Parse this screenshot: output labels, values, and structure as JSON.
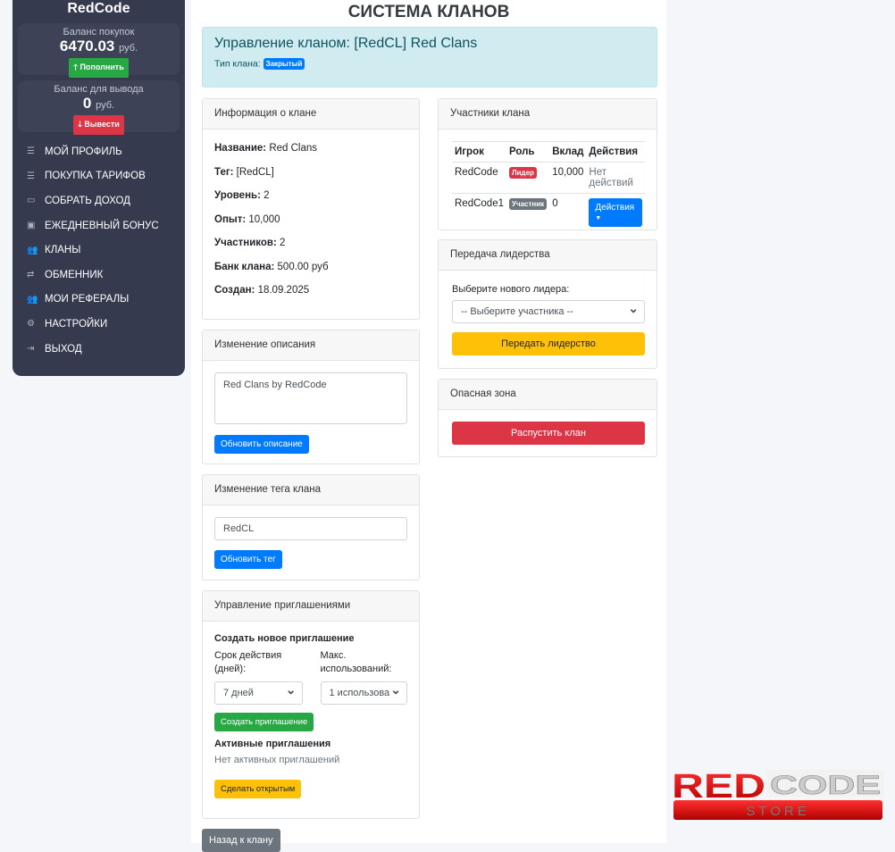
{
  "sidebar": {
    "brand": "RedCode",
    "purchase_balance": {
      "label": "Баланс покупок",
      "amount": "6470.03",
      "currency": "руб.",
      "button": "Пополнить"
    },
    "withdraw_balance": {
      "label": "Баланс для вывода",
      "amount": "0",
      "currency": "руб.",
      "button": "Вывести"
    },
    "items": [
      {
        "icon": "bars-icon",
        "label": "МОЙ ПРОФИЛЬ"
      },
      {
        "icon": "bars-icon",
        "label": "ПОКУПКА ТАРИФОВ"
      },
      {
        "icon": "money-icon",
        "label": "СОБРАТЬ ДОХОД"
      },
      {
        "icon": "gift-icon",
        "label": "ЕЖЕДНЕВНЫЙ БОНУС"
      },
      {
        "icon": "users-icon",
        "label": " КЛАНЫ"
      },
      {
        "icon": "exchange-icon",
        "label": "ОБМЕННИК"
      },
      {
        "icon": "users-icon",
        "label": "МОИ РЕФЕРАЛЫ"
      },
      {
        "icon": "gear-icon",
        "label": "НАСТРОЙКИ"
      },
      {
        "icon": "logout-icon",
        "label": "ВЫХОД"
      }
    ]
  },
  "page_title": "СИСТЕМА КЛАНОВ",
  "alert": {
    "heading": "Управление кланом: [RedCL] Red Clans",
    "type_label": "Тип клана:",
    "type_badge": "Закрытый"
  },
  "info": {
    "header": "Информация о клане",
    "rows": [
      {
        "k": "Название:",
        "v": " Red Clans"
      },
      {
        "k": "Тег:",
        "v": " [RedCL]"
      },
      {
        "k": "Уровень:",
        "v": " 2"
      },
      {
        "k": "Опыт:",
        "v": " 10,000"
      },
      {
        "k": "Участников:",
        "v": " 2"
      },
      {
        "k": "Банк клана:",
        "v": " 500.00 руб"
      },
      {
        "k": "Создан:",
        "v": " 18.09.2025"
      }
    ]
  },
  "description": {
    "header": "Изменение описания",
    "value": "Red Clans by RedCode",
    "button": "Обновить описание"
  },
  "tag": {
    "header": "Изменение тега клана",
    "value": "RedCL",
    "button": "Обновить тег"
  },
  "invites": {
    "header": "Управление приглашениями",
    "create_title": "Создать новое приглашение",
    "duration_label": "Срок действия (дней):",
    "duration_value": "7 дней",
    "max_label": "Макс. использований:",
    "max_value": "1 использова",
    "create_button": "Создать приглашение",
    "active_title": "Активные приглашения",
    "none": "Нет активных приглашений",
    "open_button": "Сделать открытым"
  },
  "back_button": "Назад к клану",
  "members": {
    "header": "Участники клана",
    "columns": [
      "Игрок",
      "Роль",
      "Вклад",
      "Действия"
    ],
    "rows": [
      {
        "player": "RedCode",
        "role": "Лидер",
        "contribution": "10,000",
        "action": "Нет действий"
      },
      {
        "player": "RedCode1",
        "role": "Участник",
        "contribution": "0",
        "action": "Действия"
      }
    ]
  },
  "leadership": {
    "header": "Передача лидерства",
    "label": "Выберите нового лидера:",
    "select": "-- Выберите участника --",
    "button": "Передать лидерство"
  },
  "danger": {
    "header": "Опасная зона",
    "button": "Распустить клан"
  },
  "logo": {
    "text_red": "RED",
    "text_white": "CODE",
    "sub": "STORE"
  },
  "colors": {
    "primary": "#007bff",
    "success": "#28a745",
    "danger": "#dc3545",
    "warning": "#ffc107",
    "sidebar": "#353a4e"
  }
}
